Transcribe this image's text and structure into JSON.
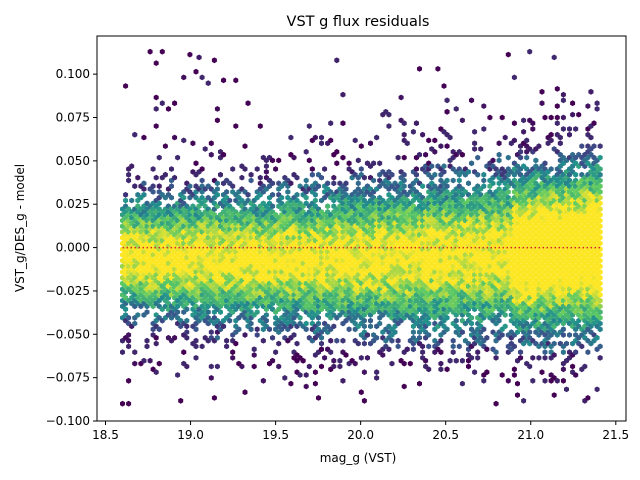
{
  "chart_data": {
    "type": "hexbin",
    "title": "VST g flux residuals",
    "xlabel": "mag_g (VST)",
    "ylabel": "VST_g/DES_g - model",
    "xlim": [
      18.45,
      21.56
    ],
    "ylim": [
      -0.1,
      0.122
    ],
    "xticks": [
      18.5,
      19.0,
      19.5,
      20.0,
      20.5,
      21.0,
      21.5
    ],
    "xtick_labels": [
      "18.5",
      "19.0",
      "19.5",
      "20.0",
      "20.5",
      "21.0",
      "21.5"
    ],
    "yticks": [
      -0.1,
      -0.075,
      -0.05,
      -0.025,
      0.0,
      0.025,
      0.05,
      0.075,
      0.1
    ],
    "ytick_labels": [
      "−0.100",
      "−0.075",
      "−0.050",
      "−0.025",
      "0.000",
      "0.025",
      "0.050",
      "0.075",
      "0.100"
    ],
    "data_extent": {
      "x": [
        18.6,
        21.42
      ],
      "y": [
        -0.09,
        0.113
      ]
    },
    "density_profile": {
      "x": [
        18.6,
        19.0,
        19.5,
        20.0,
        20.5,
        21.0,
        21.4
      ],
      "center_y": [
        -0.005,
        -0.006,
        -0.007,
        -0.006,
        -0.005,
        -0.003,
        0.0
      ],
      "spread": [
        0.022,
        0.024,
        0.025,
        0.027,
        0.029,
        0.031,
        0.032
      ]
    },
    "reference_line": {
      "y": 0.0,
      "x": [
        18.6,
        21.42
      ],
      "style": "dotted",
      "color": "#d62728"
    },
    "colormap": [
      "#440154",
      "#3b528b",
      "#21908d",
      "#5dc963",
      "#fde725"
    ],
    "grid": false,
    "legend": "none"
  }
}
